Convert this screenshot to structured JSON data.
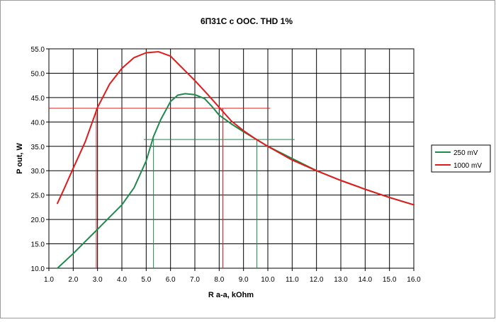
{
  "chart_data": {
    "type": "line",
    "title": "6П31С с ООС. THD 1%",
    "xlabel": "R a-a, kOhm",
    "ylabel": "P out, W",
    "xlim": [
      1.0,
      16.0
    ],
    "ylim": [
      10.0,
      55.0
    ],
    "x_ticks": [
      "1.0",
      "2.0",
      "3.0",
      "4.0",
      "5.0",
      "6.0",
      "7.0",
      "8.0",
      "9.0",
      "10.0",
      "11.0",
      "12.0",
      "13.0",
      "14.0",
      "15.0",
      "16.0"
    ],
    "y_ticks": [
      "10.0",
      "15.0",
      "20.0",
      "25.0",
      "30.0",
      "35.0",
      "40.0",
      "45.0",
      "50.0",
      "55.0"
    ],
    "grid": true,
    "legend_position": "right",
    "series": [
      {
        "name": "250 mV",
        "color": "#1e8a4c",
        "x": [
          1.35,
          2.0,
          2.5,
          3.0,
          3.5,
          4.0,
          4.5,
          5.0,
          5.3,
          5.6,
          6.0,
          6.3,
          6.6,
          7.0,
          7.4,
          7.7,
          8.0,
          8.5,
          9.0,
          9.5,
          10.0,
          11.0,
          12.0,
          13.0,
          14.0,
          15.0,
          16.0
        ],
        "y": [
          10.0,
          13.0,
          15.5,
          18.0,
          20.5,
          23.0,
          26.5,
          32.0,
          37.0,
          40.5,
          44.2,
          45.5,
          45.8,
          45.6,
          44.8,
          43.2,
          41.4,
          39.6,
          38.0,
          36.5,
          35.0,
          32.5,
          30.0,
          28.0,
          26.2,
          24.5,
          23.0
        ]
      },
      {
        "name": "1000 mV",
        "color": "#e41a1a",
        "x": [
          1.35,
          1.6,
          2.0,
          2.5,
          3.0,
          3.5,
          4.0,
          4.5,
          5.0,
          5.5,
          6.0,
          6.5,
          7.0,
          7.5,
          8.0,
          8.5,
          9.0,
          9.5,
          10.0,
          11.0,
          12.0,
          13.0,
          14.0,
          15.0,
          16.0
        ],
        "y": [
          23.3,
          26.0,
          30.5,
          36.0,
          43.0,
          47.8,
          51.0,
          53.2,
          54.2,
          54.4,
          53.5,
          51.0,
          48.5,
          45.8,
          43.0,
          40.2,
          38.2,
          36.5,
          35.0,
          32.2,
          30.0,
          28.0,
          26.2,
          24.5,
          23.0
        ]
      }
    ],
    "reference_lines": [
      {
        "color": "#e41a1a",
        "orientation": "horizontal",
        "y": 42.8,
        "x_from": 1.0,
        "x_to": 10.1
      },
      {
        "color": "#e41a1a",
        "orientation": "vertical",
        "x": 2.95,
        "y_from": 10.0,
        "y_to": 42.8
      },
      {
        "color": "#e41a1a",
        "orientation": "vertical",
        "x": 8.15,
        "y_from": 10.0,
        "y_to": 42.8
      },
      {
        "color": "#1e8a4c",
        "orientation": "horizontal",
        "y": 36.4,
        "x_from": 4.9,
        "x_to": 11.1
      },
      {
        "color": "#1e8a4c",
        "orientation": "vertical",
        "x": 5.3,
        "y_from": 10.0,
        "y_to": 36.4
      },
      {
        "color": "#1e8a4c",
        "orientation": "vertical",
        "x": 9.55,
        "y_from": 10.0,
        "y_to": 36.4
      }
    ]
  }
}
